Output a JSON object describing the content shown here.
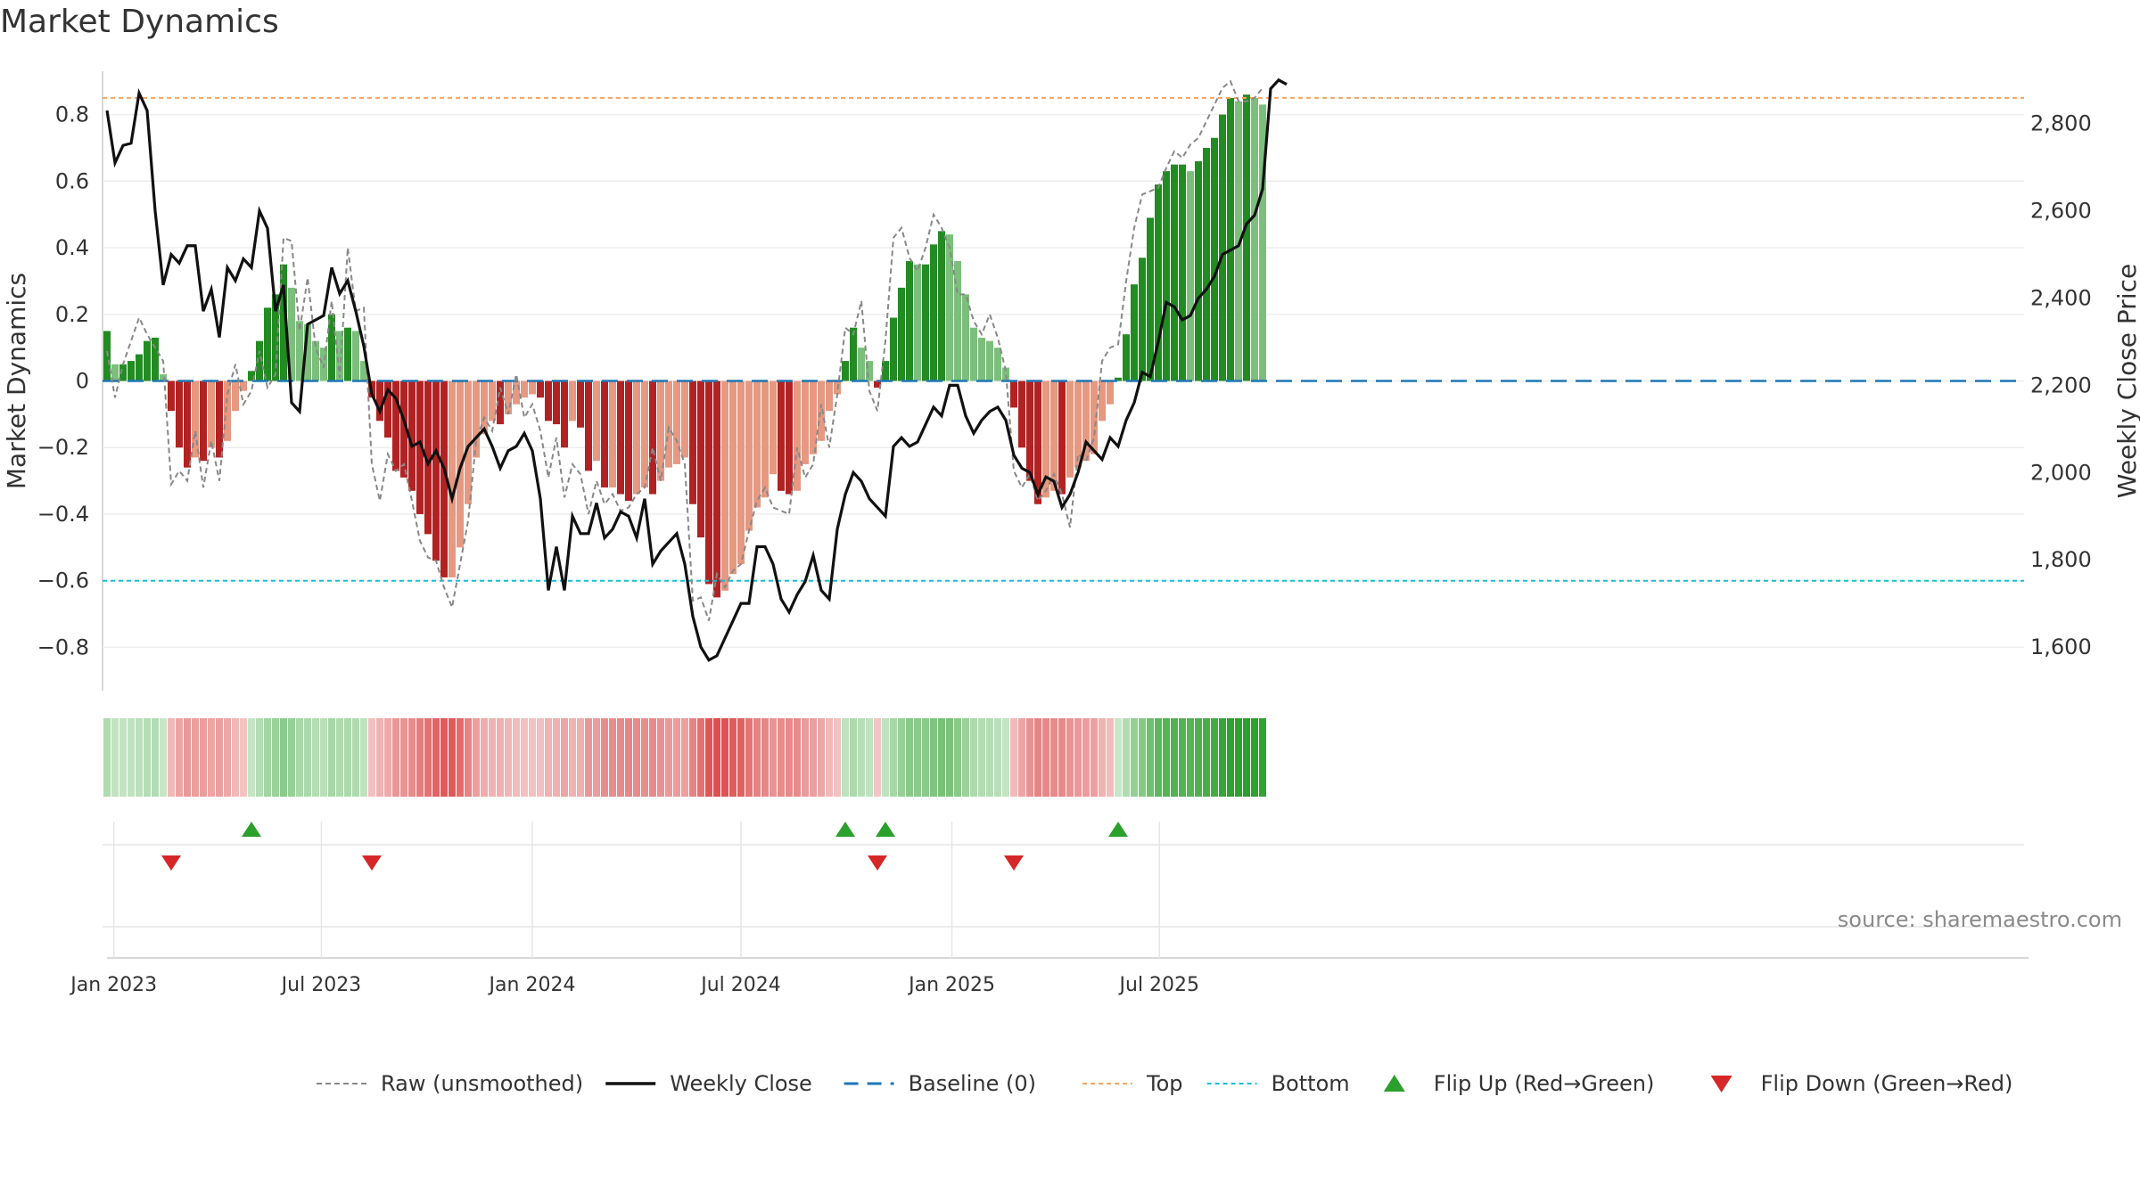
{
  "chart_data": {
    "type": "bar",
    "title": "Market Dynamics",
    "left_axis": {
      "label": "Market Dynamics",
      "ylim": [
        -0.93,
        0.93
      ],
      "ticks": [
        0.8,
        0.6,
        0.4,
        0.2,
        0,
        -0.2,
        -0.4,
        -0.6,
        -0.8
      ],
      "tick_labels": [
        "0.8",
        "0.6",
        "0.4",
        "0.2",
        "0",
        "−0.2",
        "−0.4",
        "−0.6",
        "−0.8"
      ]
    },
    "right_axis": {
      "label": "Weekly Close Price",
      "ylim": [
        1500,
        2920
      ],
      "ticks": [
        2800,
        2600,
        2400,
        2200,
        2000,
        1800,
        1600
      ],
      "tick_labels": [
        "2,800",
        "2,600",
        "2,400",
        "2,200",
        "2,000",
        "1,800",
        "1,600"
      ]
    },
    "x_axis": {
      "start_date": "2022-12-26",
      "tick_dates": [
        "2023-01-01",
        "2023-07-01",
        "2024-01-01",
        "2024-07-01",
        "2025-01-01",
        "2025-07-01"
      ],
      "tick_labels": [
        "Jan 2023",
        "Jul 2023",
        "Jan 2024",
        "Jul 2024",
        "Jan 2025",
        "Jul 2025"
      ]
    },
    "reference_lines": {
      "top": 0.85,
      "bottom": -0.6,
      "baseline": 0
    },
    "colors": {
      "dark_green": "#228b22",
      "light_green": "#7cbf7c",
      "dark_red": "#b22222",
      "light_red": "#e69880",
      "close": "#111111",
      "raw": "#888888",
      "baseline": "#1f77b4",
      "top": "#f4a460",
      "bottom": "#17becf",
      "flip_up": "#2ca02c",
      "flip_down": "#d62728"
    },
    "bars": [
      0.15,
      0.05,
      0.05,
      0.06,
      0.08,
      0.12,
      0.13,
      0.02,
      -0.09,
      -0.2,
      -0.26,
      -0.23,
      -0.24,
      -0.2,
      -0.23,
      -0.18,
      -0.09,
      -0.03,
      0.03,
      0.12,
      0.22,
      0.26,
      0.35,
      0.28,
      0.18,
      0.17,
      0.12,
      0.1,
      0.2,
      0.15,
      0.16,
      0.15,
      0.06,
      -0.05,
      -0.12,
      -0.17,
      -0.27,
      -0.29,
      -0.33,
      -0.4,
      -0.46,
      -0.54,
      -0.59,
      -0.59,
      -0.5,
      -0.37,
      -0.23,
      -0.16,
      -0.12,
      -0.13,
      -0.1,
      -0.07,
      -0.05,
      -0.04,
      -0.05,
      -0.12,
      -0.13,
      -0.2,
      -0.12,
      -0.14,
      -0.27,
      -0.24,
      -0.32,
      -0.32,
      -0.34,
      -0.36,
      -0.34,
      -0.32,
      -0.34,
      -0.3,
      -0.26,
      -0.25,
      -0.23,
      -0.37,
      -0.47,
      -0.61,
      -0.65,
      -0.63,
      -0.58,
      -0.55,
      -0.45,
      -0.38,
      -0.35,
      -0.28,
      -0.33,
      -0.34,
      -0.33,
      -0.25,
      -0.22,
      -0.18,
      -0.09,
      -0.04,
      0.06,
      0.16,
      0.1,
      0.06,
      -0.02,
      0.06,
      0.19,
      0.28,
      0.36,
      0.35,
      0.35,
      0.41,
      0.45,
      0.44,
      0.36,
      0.26,
      0.16,
      0.13,
      0.12,
      0.1,
      0.04,
      -0.08,
      -0.2,
      -0.3,
      -0.37,
      -0.35,
      -0.33,
      -0.34,
      -0.29,
      -0.26,
      -0.24,
      -0.22,
      -0.12,
      -0.07,
      0.01,
      0.14,
      0.29,
      0.37,
      0.49,
      0.59,
      0.63,
      0.65,
      0.65,
      0.63,
      0.66,
      0.7,
      0.73,
      0.8,
      0.85,
      0.84,
      0.86,
      0.85,
      0.83
    ],
    "raw": [
      0.09,
      -0.05,
      0.05,
      0.12,
      0.19,
      0.14,
      0.1,
      0.06,
      -0.31,
      -0.27,
      -0.3,
      -0.15,
      -0.32,
      -0.18,
      -0.3,
      -0.04,
      0.05,
      -0.07,
      -0.03,
      0.09,
      -0.02,
      0.02,
      0.43,
      0.42,
      0.15,
      0.31,
      0.1,
      0.04,
      0.24,
      0.01,
      0.4,
      0.21,
      0.22,
      -0.25,
      -0.36,
      -0.22,
      -0.27,
      -0.25,
      -0.36,
      -0.48,
      -0.53,
      -0.54,
      -0.62,
      -0.68,
      -0.55,
      -0.42,
      -0.18,
      -0.11,
      -0.15,
      -0.02,
      -0.1,
      0.02,
      -0.11,
      -0.07,
      -0.15,
      -0.29,
      -0.17,
      -0.35,
      -0.25,
      -0.28,
      -0.4,
      -0.3,
      -0.37,
      -0.34,
      -0.39,
      -0.38,
      -0.34,
      -0.32,
      -0.2,
      -0.3,
      -0.14,
      -0.18,
      -0.25,
      -0.66,
      -0.65,
      -0.72,
      -0.58,
      -0.62,
      -0.57,
      -0.55,
      -0.45,
      -0.36,
      -0.32,
      -0.38,
      -0.39,
      -0.4,
      -0.2,
      -0.29,
      -0.25,
      -0.07,
      -0.2,
      -0.04,
      0.16,
      0.14,
      0.24,
      -0.03,
      -0.09,
      0.12,
      0.43,
      0.46,
      0.37,
      0.33,
      0.4,
      0.5,
      0.46,
      0.4,
      0.26,
      0.26,
      0.18,
      0.14,
      0.2,
      0.13,
      0.03,
      -0.27,
      -0.32,
      -0.28,
      -0.36,
      -0.33,
      -0.28,
      -0.34,
      -0.44,
      -0.22,
      -0.24,
      -0.17,
      0.06,
      0.1,
      0.11,
      0.3,
      0.46,
      0.56,
      0.57,
      0.58,
      0.64,
      0.69,
      0.67,
      0.71,
      0.73,
      0.78,
      0.83,
      0.88,
      0.9,
      0.84,
      0.84,
      0.85,
      0.88
    ],
    "close": [
      2830,
      2710,
      2750,
      2755,
      2870,
      2830,
      2600,
      2430,
      2500,
      2480,
      2520,
      2520,
      2370,
      2420,
      2310,
      2470,
      2440,
      2490,
      2470,
      2600,
      2560,
      2370,
      2430,
      2160,
      2140,
      2340,
      2350,
      2360,
      2470,
      2410,
      2440,
      2370,
      2290,
      2180,
      2140,
      2190,
      2170,
      2120,
      2060,
      2070,
      2020,
      2050,
      2010,
      1940,
      2010,
      2060,
      2080,
      2100,
      2060,
      2010,
      2050,
      2060,
      2090,
      2050,
      1940,
      1730,
      1830,
      1730,
      1900,
      1860,
      1860,
      1930,
      1850,
      1870,
      1910,
      1900,
      1850,
      1940,
      1790,
      1820,
      1840,
      1860,
      1790,
      1670,
      1600,
      1570,
      1580,
      1620,
      1660,
      1700,
      1700,
      1830,
      1830,
      1790,
      1710,
      1680,
      1720,
      1750,
      1810,
      1730,
      1710,
      1870,
      1950,
      2000,
      1980,
      1940,
      1920,
      1900,
      2060,
      2080,
      2060,
      2070,
      2110,
      2150,
      2130,
      2200,
      2200,
      2130,
      2090,
      2120,
      2140,
      2150,
      2120,
      2040,
      2010,
      2000,
      1950,
      1990,
      1980,
      1920,
      1950,
      2000,
      2070,
      2050,
      2030,
      2080,
      2060,
      2120,
      2160,
      2230,
      2220,
      2300,
      2390,
      2380,
      2350,
      2360,
      2400,
      2420,
      2450,
      2500,
      2510,
      2520,
      2570,
      2590,
      2650,
      2880,
      2900,
      2890
    ]
  },
  "legend": [
    {
      "label": "Raw (unsmoothed)",
      "kind": "dashed-gray"
    },
    {
      "label": "Weekly Close",
      "kind": "solid-black"
    },
    {
      "label": "Baseline (0)",
      "kind": "dashed-blue"
    },
    {
      "label": "Top",
      "kind": "dotted-orange"
    },
    {
      "label": "Bottom",
      "kind": "dotted-teal"
    },
    {
      "label": "Flip Up (Red→Green)",
      "kind": "triangle-up"
    },
    {
      "label": "Flip Down (Green→Red)",
      "kind": "triangle-down"
    }
  ],
  "source_text": "source: sharemaestro.com"
}
